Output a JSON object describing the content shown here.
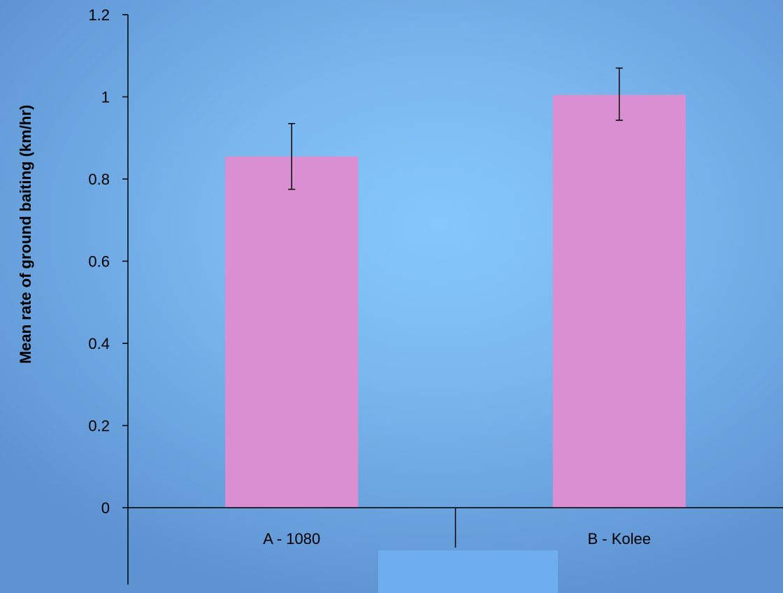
{
  "chart_data": {
    "type": "bar",
    "title": "",
    "xlabel": "",
    "ylabel": "Mean  rate of ground baiting (km/hr)",
    "categories": [
      "A - 1080",
      "B - Kolee"
    ],
    "values": [
      0.855,
      1.005
    ],
    "error_low": [
      0.775,
      0.943
    ],
    "error_high": [
      0.935,
      1.07
    ],
    "ylim": [
      0,
      1.2
    ],
    "yticks": [
      0,
      0.2,
      0.4,
      0.6,
      0.8,
      1,
      1.2
    ],
    "ytick_labels": [
      "0",
      "0.2",
      "0.4",
      "0.6",
      "0.8",
      "1",
      "1.2"
    ],
    "grid": false,
    "legend": "none",
    "bar_color": "#da8fd2",
    "error_bar_color": "#000000"
  }
}
